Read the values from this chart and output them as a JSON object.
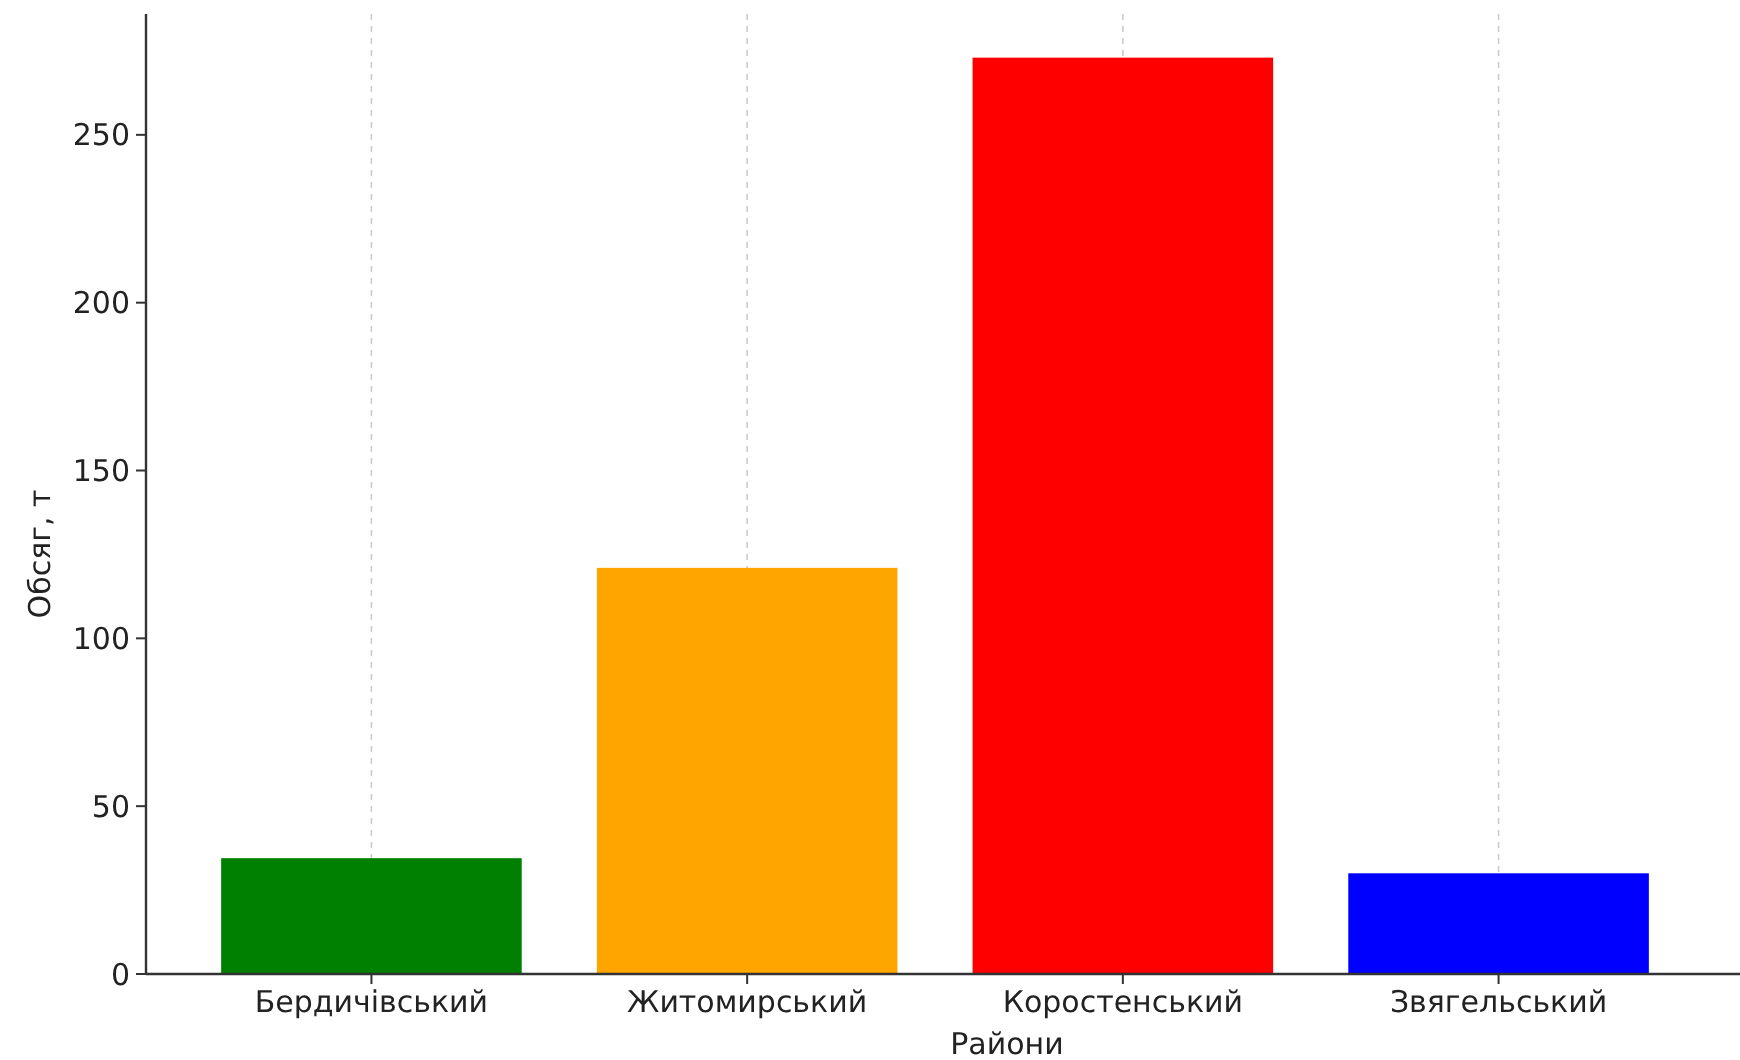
{
  "chart_data": {
    "type": "bar",
    "xlabel": "Райони",
    "ylabel": "Обсяг, т",
    "categories": [
      "Бердичівський",
      "Житомирський",
      "Коростенський",
      "Звягельський"
    ],
    "values": [
      34.5,
      121,
      273,
      30
    ],
    "colors": [
      "#008000",
      "#ffa500",
      "#ff0000",
      "#0000ff"
    ],
    "ylim": [
      0,
      286
    ],
    "yticks": [
      0,
      50,
      100,
      150,
      200,
      250
    ],
    "grid": "x"
  }
}
